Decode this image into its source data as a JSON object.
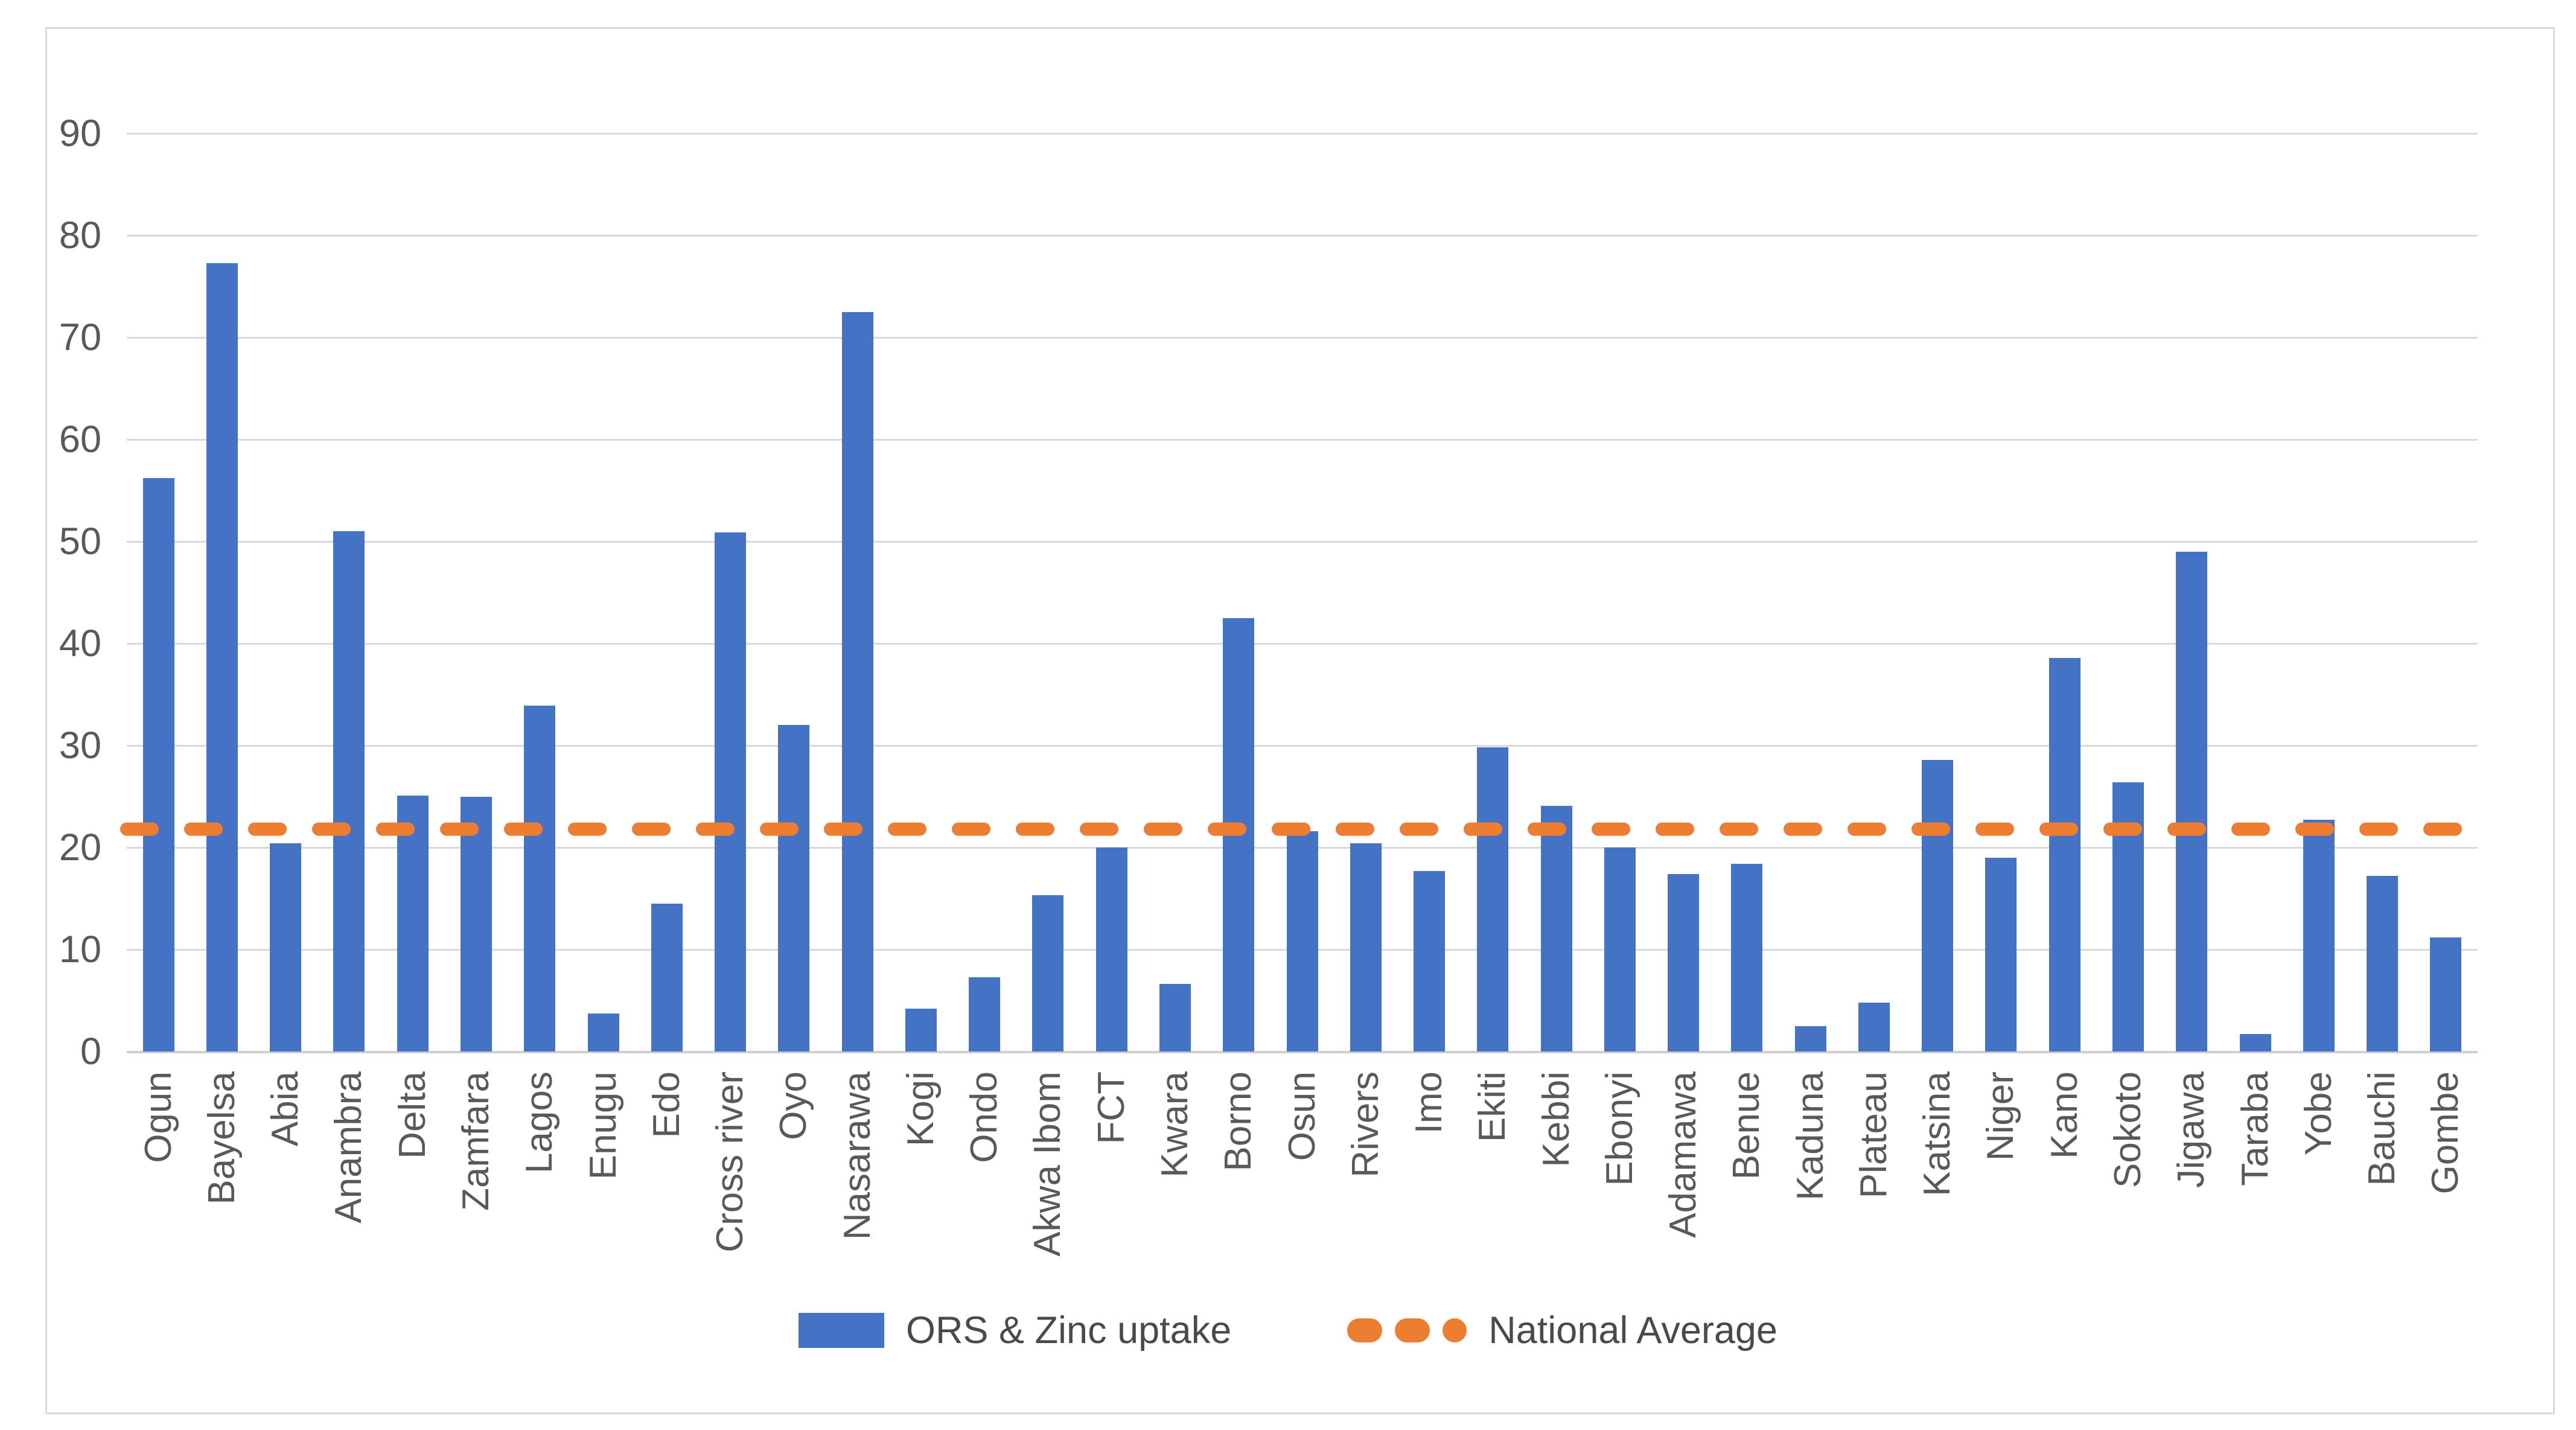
{
  "chart_data": {
    "type": "bar",
    "title": "",
    "xlabel": "",
    "ylabel": "",
    "categories": [
      "Ogun",
      "Bayelsa",
      "Abia",
      "Anambra",
      "Delta",
      "Zamfara",
      "Lagos",
      "Enugu",
      "Edo",
      "Cross river",
      "Oyo",
      "Nasarawa",
      "Kogi",
      "Ondo",
      "Akwa Ibom",
      "FCT",
      "Kwara",
      "Borno",
      "Osun",
      "Rivers",
      "Imo",
      "Ekiti",
      "Kebbi",
      "Ebonyi",
      "Adamawa",
      "Benue",
      "Kaduna",
      "Plateau",
      "Katsina",
      "Niger",
      "Kano",
      "Sokoto",
      "Jigawa",
      "Taraba",
      "Yobe",
      "Bauchi",
      "Gombe"
    ],
    "series": [
      {
        "name": "ORS & Zinc uptake",
        "type": "bar",
        "color": "#4472C4",
        "values": [
          56.2,
          77.3,
          20.4,
          51.0,
          25.1,
          25.0,
          33.9,
          3.7,
          14.5,
          50.9,
          32.0,
          72.5,
          4.2,
          7.3,
          15.3,
          20.0,
          6.6,
          42.5,
          21.6,
          20.4,
          17.7,
          29.8,
          24.1,
          20.0,
          17.4,
          18.4,
          2.5,
          4.8,
          28.6,
          19.0,
          38.6,
          26.4,
          49.0,
          1.7,
          22.7,
          17.2,
          11.2
        ]
      },
      {
        "name": "National Average",
        "type": "dashed-line",
        "color": "#ED7D31",
        "value": 21.8
      }
    ],
    "ylim": [
      0,
      90
    ],
    "ytick_step": 10,
    "y_ticks": [
      0,
      10,
      20,
      30,
      40,
      50,
      60,
      70,
      80,
      90
    ],
    "grid": true,
    "legend_position": "bottom"
  },
  "colors": {
    "bar": "#4472C4",
    "average_line": "#ED7D31",
    "gridline": "#D9D9D9",
    "axis_text": "#595959",
    "figure_border": "#D9D9D9",
    "background": "#FFFFFF"
  }
}
